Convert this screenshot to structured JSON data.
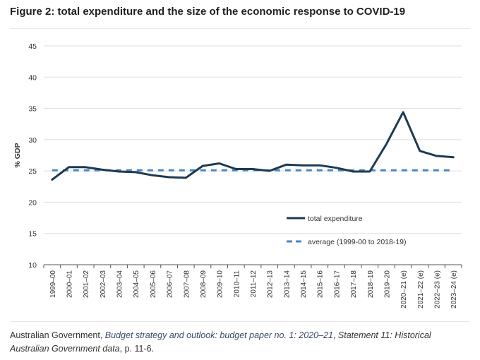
{
  "figure_title": "Figure 2: total expenditure and the size of the economic response to COVID-19",
  "caption": {
    "prefix": "Australian Government, ",
    "link_text": "Budget strategy and outlook: budget paper no. 1: 2020–21",
    "middle": ", ",
    "statement": "Statement 11: Historical Australian Government data",
    "suffix": ", p. 11-6."
  },
  "colors": {
    "total": "#1d3a52",
    "average": "#4a86c0",
    "grid": "#dddddd",
    "axis": "#555555",
    "text": "#333333"
  },
  "chart_data": {
    "type": "line",
    "ylabel": "% GDP",
    "xlabel": "",
    "ylim": [
      10,
      45
    ],
    "yticks": [
      10,
      15,
      20,
      25,
      30,
      35,
      40,
      45
    ],
    "grid": "horizontal",
    "legend_position": "lower-right",
    "categories": [
      "1999–00",
      "2000–01",
      "2001–02",
      "2002–03",
      "2003–04",
      "2004–05",
      "2005–06",
      "2006–07",
      "2007–08",
      "2008–09",
      "2009–10",
      "2010–11",
      "2011–12",
      "2012–13",
      "2013–14",
      "2014–15",
      "2015–16",
      "2016–17",
      "2017–18",
      "2018–19",
      "2019–20",
      "2020–21 (e)",
      "2021–22 (e)",
      "2022–23 (e)",
      "2023–24 (e)"
    ],
    "series": [
      {
        "name": "total expenditure",
        "style": "solid",
        "values": [
          23.6,
          25.6,
          25.6,
          25.2,
          24.9,
          24.8,
          24.3,
          24.0,
          23.9,
          25.8,
          26.2,
          25.3,
          25.3,
          25.0,
          26.0,
          25.9,
          25.9,
          25.5,
          24.9,
          24.9,
          29.3,
          34.4,
          28.2,
          27.4,
          27.2
        ]
      },
      {
        "name": "average (1999-00 to 2018-19)",
        "style": "dashed",
        "values": [
          25.1,
          25.1,
          25.1,
          25.1,
          25.1,
          25.1,
          25.1,
          25.1,
          25.1,
          25.1,
          25.1,
          25.1,
          25.1,
          25.1,
          25.1,
          25.1,
          25.1,
          25.1,
          25.1,
          25.1,
          25.1,
          25.1,
          25.1,
          25.1,
          25.1
        ]
      }
    ]
  }
}
